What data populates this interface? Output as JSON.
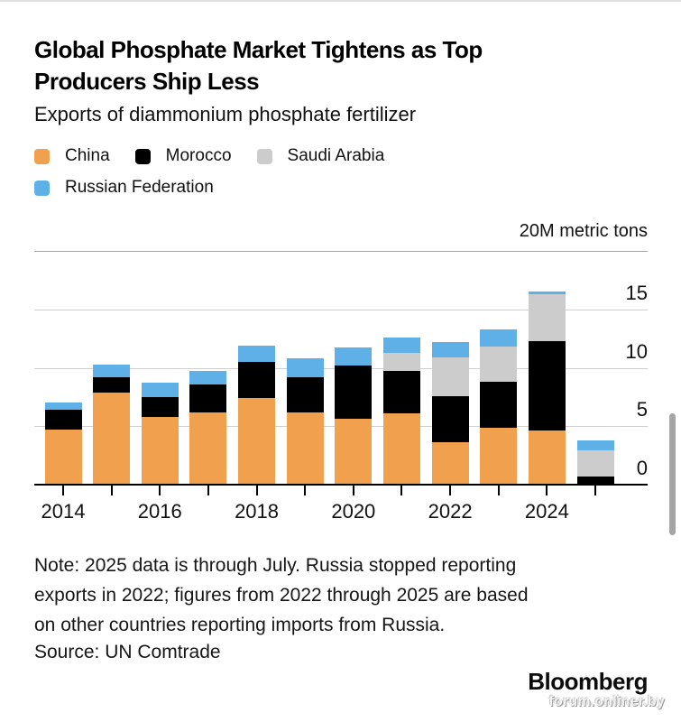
{
  "header": {
    "title_lines": [
      "Global Phosphate Market Tightens as Top",
      "Producers Ship Less"
    ],
    "subtitle": "Exports of diammonium phosphate fertilizer"
  },
  "legend": {
    "items": [
      {
        "label": "China",
        "color": "#F1A14E"
      },
      {
        "label": "Morocco",
        "color": "#000000"
      },
      {
        "label": "Saudi Arabia",
        "color": "#CCCCCC"
      },
      {
        "label": "Russian Federation",
        "color": "#5FB0E6"
      }
    ]
  },
  "chart_data": {
    "type": "bar",
    "stacked": true,
    "title": "Global Phosphate Market Tightens as Top Producers Ship Less",
    "subtitle": "Exports of diammonium phosphate fertilizer",
    "unit_label": "20M metric tons",
    "categories": [
      2014,
      2015,
      2016,
      2017,
      2018,
      2019,
      2020,
      2021,
      2022,
      2023,
      2024,
      2025
    ],
    "series": [
      {
        "name": "China",
        "color": "#F1A14E",
        "values": [
          4.7,
          7.9,
          5.8,
          6.2,
          7.4,
          6.2,
          5.6,
          6.1,
          3.6,
          4.9,
          4.6,
          0
        ]
      },
      {
        "name": "Morocco",
        "color": "#000000",
        "values": [
          1.7,
          1.3,
          1.7,
          2.4,
          3.1,
          3.0,
          4.6,
          3.6,
          4.0,
          3.9,
          7.7,
          0.7
        ]
      },
      {
        "name": "Saudi Arabia",
        "color": "#CCCCCC",
        "values": [
          0,
          0,
          0,
          0,
          0,
          0,
          0,
          1.6,
          3.3,
          3.0,
          4.0,
          2.2
        ]
      },
      {
        "name": "Russian Federation",
        "color": "#5FB0E6",
        "values": [
          0.65,
          1.1,
          1.2,
          1.1,
          1.4,
          1.6,
          1.5,
          1.3,
          1.3,
          1.5,
          0.2,
          0.9
        ]
      }
    ],
    "y_axis": {
      "max": 20,
      "gridlines": [
        20,
        15,
        10,
        5
      ],
      "tick_labels": [
        "15",
        "10",
        "5",
        "0"
      ],
      "tick_values": [
        15,
        10,
        5,
        0
      ]
    },
    "x_tick_labels": [
      "2014",
      "2016",
      "2018",
      "2020",
      "2022",
      "2024"
    ],
    "legend_position": "top",
    "grid": true
  },
  "footer": {
    "note_lines": [
      "Note: 2025 data is through July. Russia stopped reporting",
      "exports in 2022; figures from 2022 through 2025 are based",
      "on other countries reporting imports from Russia."
    ],
    "source": "Source: UN Comtrade",
    "brand": "Bloomberg",
    "watermark": "forum.onliner.by"
  }
}
